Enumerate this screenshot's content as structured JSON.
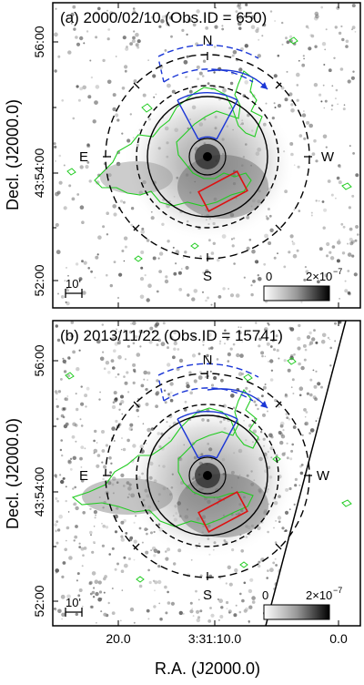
{
  "figure": {
    "xlabel": "R.A. (J2000.0)",
    "ylabel": "Decl. (J2000.0)",
    "x_ticks": [
      "20.0",
      "3:31:10.0",
      "0.0"
    ],
    "y_ticks": [
      "56:00",
      "43:54:00",
      "52:00"
    ],
    "panels": [
      {
        "title": "(a) 2000/02/10 (Obs.ID = 650)",
        "directions": {
          "n": "N",
          "s": "S",
          "e": "E",
          "w": "W"
        },
        "scale_bar": "10'",
        "colorbar": {
          "min_label": "0",
          "max_label": "2×10",
          "exponent": "−7"
        }
      },
      {
        "title": "(b) 2013/11/22 (Obs.ID = 15741)",
        "directions": {
          "n": "N",
          "s": "S",
          "e": "E",
          "w": "W"
        },
        "scale_bar": "10'",
        "colorbar": {
          "min_label": "0",
          "max_label": "2×10",
          "exponent": "−7"
        }
      }
    ]
  },
  "colors": {
    "contour": "#22cc22",
    "sector": "#1a36d6",
    "region": "#dd1111",
    "rings": "#000000"
  }
}
